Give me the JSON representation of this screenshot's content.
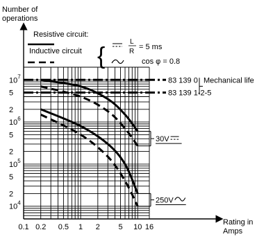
{
  "chart_data": {
    "type": "line",
    "ylabel_line1": "Number of",
    "ylabel_line2": "operations",
    "xlabel_line1": "Rating in",
    "xlabel_line2": "Amps",
    "x_scale": "log",
    "y_scale": "log",
    "xlim": [
      0.1,
      16
    ],
    "ylim": [
      5000,
      20000000
    ],
    "x_ticks": [
      {
        "v": 0.1,
        "label": "0.1"
      },
      {
        "v": 0.2,
        "label": "0.2"
      },
      {
        "v": 0.5,
        "label": "0.5"
      },
      {
        "v": 1,
        "label": "1"
      },
      {
        "v": 2,
        "label": "2"
      },
      {
        "v": 5,
        "label": "5"
      },
      {
        "v": 10,
        "label": "10"
      },
      {
        "v": 16,
        "label": "16"
      }
    ],
    "y_ticks": [
      {
        "v": 10000,
        "mant": "10",
        "exp": "4"
      },
      {
        "v": 20000,
        "mant": "2",
        "exp": ""
      },
      {
        "v": 50000,
        "mant": "5",
        "exp": ""
      },
      {
        "v": 100000,
        "mant": "10",
        "exp": "5"
      },
      {
        "v": 200000,
        "mant": "2",
        "exp": ""
      },
      {
        "v": 500000,
        "mant": "5",
        "exp": ""
      },
      {
        "v": 1000000,
        "mant": "10",
        "exp": "6"
      },
      {
        "v": 2000000,
        "mant": "2",
        "exp": ""
      },
      {
        "v": 5000000,
        "mant": "5",
        "exp": ""
      },
      {
        "v": 10000000,
        "mant": "10",
        "exp": "7"
      }
    ],
    "legend": {
      "resistive": "Resistive circuit:",
      "inductive": "Inductive circuit",
      "dc_condition_num": "L",
      "dc_condition_den": "R",
      "dc_condition_val": "= 5 ms",
      "ac_condition": "cos φ = 0.8"
    },
    "mechanical_life": {
      "label": "Mechanical life",
      "lines": [
        {
          "name": "83 139 0",
          "y": 10000000
        },
        {
          "name": "83 139 1-2-5",
          "y": 5000000
        }
      ]
    },
    "groups": [
      {
        "label": "30V",
        "symbol": "dc",
        "series": [
          {
            "style": "resistive",
            "points": [
              [
                0.2,
                10000000
              ],
              [
                1,
                7000000
              ],
              [
                3,
                3500000
              ],
              [
                6,
                1500000
              ],
              [
                10,
                600000
              ]
            ]
          },
          {
            "style": "inductive",
            "points": [
              [
                0.2,
                7000000
              ],
              [
                1,
                4000000
              ],
              [
                3,
                1800000
              ],
              [
                6,
                700000
              ],
              [
                10,
                270000
              ]
            ]
          }
        ]
      },
      {
        "label": "250V",
        "symbol": "ac",
        "series": [
          {
            "style": "resistive",
            "points": [
              [
                0.2,
                2000000
              ],
              [
                1,
                800000
              ],
              [
                3,
                300000
              ],
              [
                6,
                100000
              ],
              [
                10,
                20000
              ]
            ]
          },
          {
            "style": "inductive",
            "points": [
              [
                0.2,
                1500000
              ],
              [
                1,
                500000
              ],
              [
                3,
                150000
              ],
              [
                6,
                40000
              ],
              [
                10,
                10000
              ]
            ]
          }
        ]
      }
    ]
  }
}
